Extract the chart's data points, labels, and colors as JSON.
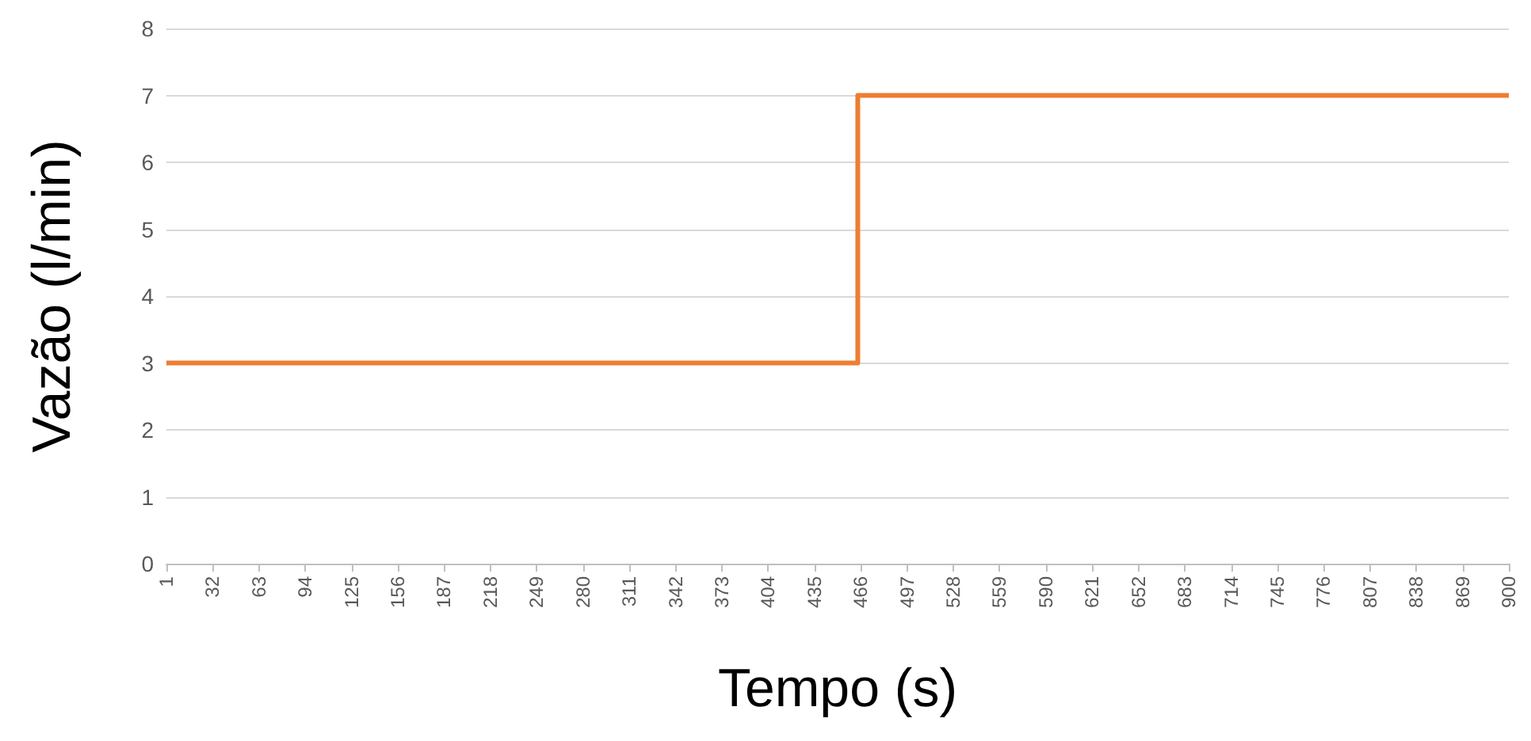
{
  "chart_data": {
    "type": "step",
    "xlabel": "Tempo (s)",
    "ylabel": "Vazão (l/min)",
    "x": [
      1,
      464,
      900
    ],
    "series": [
      {
        "color": "#ed7d31",
        "values": [
          3,
          7,
          7
        ]
      }
    ],
    "xlim": [
      1,
      900
    ],
    "xticks": [
      1,
      32,
      63,
      94,
      125,
      156,
      187,
      218,
      249,
      280,
      311,
      342,
      373,
      404,
      435,
      466,
      497,
      528,
      559,
      590,
      621,
      652,
      683,
      714,
      745,
      776,
      807,
      838,
      869,
      900
    ],
    "ylim": [
      0,
      8
    ],
    "yticks": [
      0,
      1,
      2,
      3,
      4,
      5,
      6,
      7,
      8
    ],
    "grid": "y",
    "marker": "none",
    "line_style": "solid"
  }
}
